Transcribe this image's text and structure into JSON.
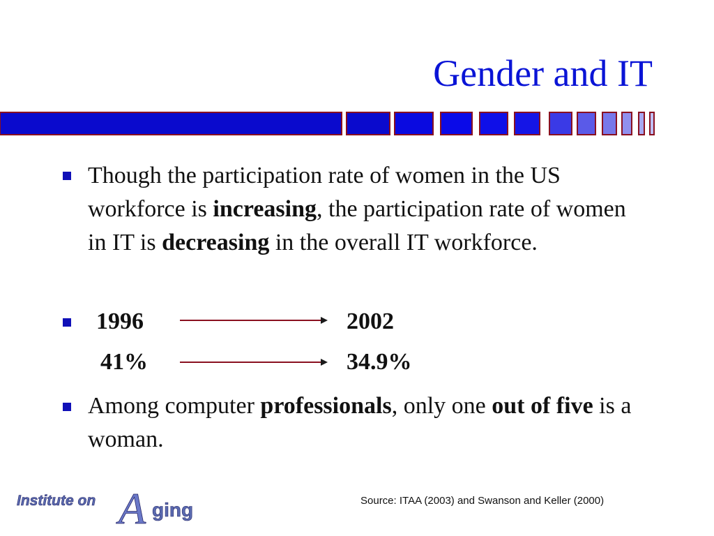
{
  "slide": {
    "title": "Gender and IT",
    "bullets": [
      {
        "parts": [
          {
            "text": "Though the participation rate of women in the US workforce is ",
            "bold": false
          },
          {
            "text": "increasing",
            "bold": true
          },
          {
            "text": ", the participation rate of women in IT is ",
            "bold": false
          },
          {
            "text": "decreasing",
            "bold": true
          },
          {
            "text": " in the overall IT workforce.",
            "bold": false
          }
        ]
      },
      {
        "comparison": {
          "from_year": "1996",
          "to_year": "2002",
          "from_value": "41%",
          "to_value": "34.9%"
        }
      },
      {
        "parts": [
          {
            "text": "Among computer ",
            "bold": false
          },
          {
            "text": "professionals",
            "bold": true
          },
          {
            "text": ", only one ",
            "bold": false
          },
          {
            "text": "out of five",
            "bold": true
          },
          {
            "text": " is a woman.",
            "bold": false
          }
        ]
      }
    ],
    "logo_text": {
      "part1": "Institute on",
      "big_letter": "A",
      "part2": "ging"
    },
    "source": "Source: ITAA (2003) and Swanson and Keller (2000)",
    "colors": {
      "title": "#0a14d6",
      "bullet": "#1010b8",
      "bar_dark": "#0a0acd",
      "bar_light": "#9aa0ee"
    }
  }
}
